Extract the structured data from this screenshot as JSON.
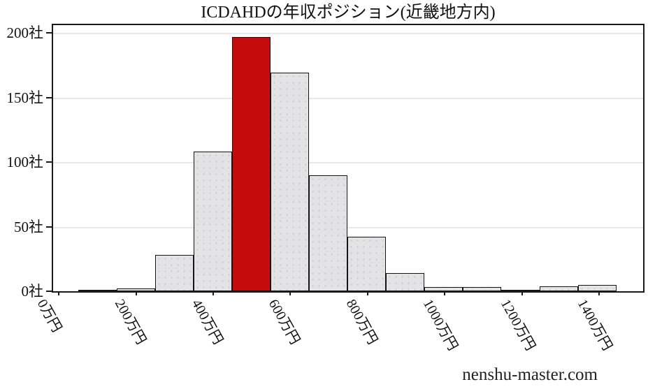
{
  "title": "ICDAHDの年収ポジション(近畿地方内)",
  "watermark": "nenshu-master.com",
  "chart_data": {
    "type": "bar",
    "title": "ICDAHDの年収ポジション(近畿地方内)",
    "x_axis": {
      "tick_labels": [
        "0万円",
        "200万円",
        "400万円",
        "600万円",
        "800万円",
        "1000万円",
        "1200万円",
        "1400万円"
      ],
      "tick_values_manen": [
        0,
        200,
        400,
        600,
        800,
        1000,
        1200,
        1400
      ],
      "unit": "万円"
    },
    "y_axis": {
      "tick_labels": [
        "0社",
        "50社",
        "100社",
        "150社",
        "200社"
      ],
      "tick_values": [
        0,
        50,
        100,
        150,
        200
      ],
      "unit": "社",
      "ylim": [
        0,
        207
      ]
    },
    "bins_manen": [
      [
        50,
        150
      ],
      [
        150,
        250
      ],
      [
        250,
        350
      ],
      [
        350,
        450
      ],
      [
        450,
        550
      ],
      [
        550,
        650
      ],
      [
        650,
        750
      ],
      [
        750,
        850
      ],
      [
        850,
        950
      ],
      [
        950,
        1050
      ],
      [
        1050,
        1150
      ],
      [
        1150,
        1250
      ],
      [
        1250,
        1350
      ],
      [
        1350,
        1450
      ]
    ],
    "values": [
      1,
      2,
      28,
      108,
      197,
      169,
      90,
      42,
      14,
      3,
      3,
      1,
      4,
      5
    ],
    "highlight_index": 4,
    "grid": "horizontal-50",
    "legend": "none",
    "colors": {
      "bar_fill": "#e3e3e6",
      "bar_dot": "#c7c7ce",
      "bar_edge": "#141414",
      "highlight_fill": "#c40c0c",
      "grid_line": "#e8e8e8",
      "axis": "#1a1a1a",
      "background": "#ffffff"
    }
  }
}
